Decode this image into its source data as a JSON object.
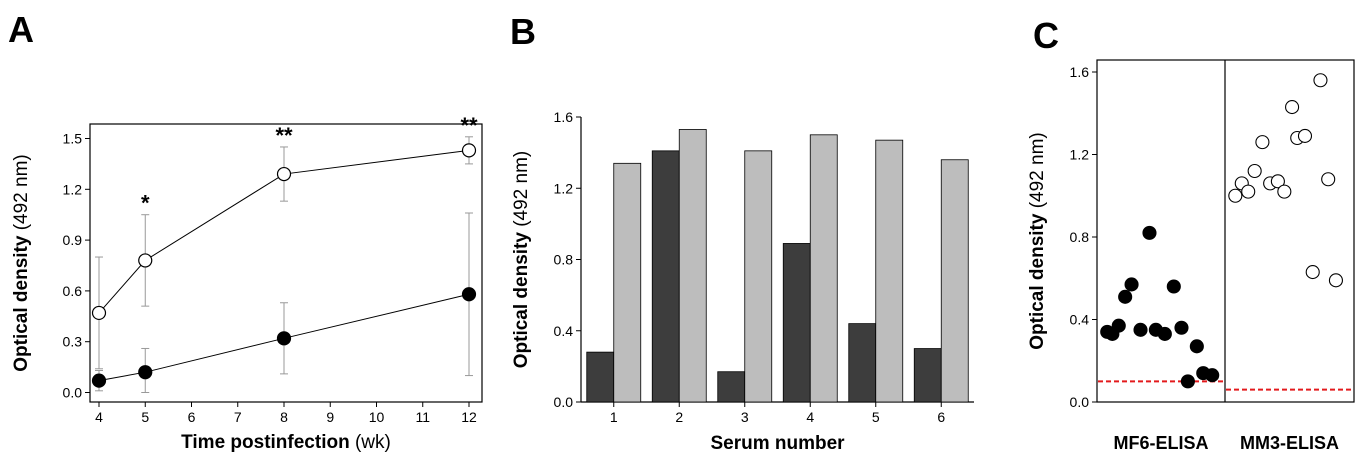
{
  "chart_data": [
    {
      "panel": "A",
      "type": "line",
      "xlabel": "Time postinfection",
      "xlabel_unit": "(wk)",
      "ylabel": "Optical density",
      "ylabel_unit": "(492 nm)",
      "xlim": [
        3.5,
        12.5
      ],
      "ylim": [
        -0.05,
        1.6
      ],
      "xticks": [
        4,
        5,
        6,
        7,
        8,
        9,
        10,
        11,
        12
      ],
      "yticks": [
        0.0,
        0.3,
        0.6,
        0.9,
        1.2,
        1.5
      ],
      "ytick_labels": [
        "0.0",
        "0.3",
        "0.6",
        "0.9",
        "1.2",
        "1.5"
      ],
      "series": [
        {
          "marker": "open-circle",
          "x": [
            4,
            5,
            8,
            12
          ],
          "y": [
            0.47,
            0.78,
            1.29,
            1.43
          ],
          "error": [
            0.33,
            0.27,
            0.16,
            0.08
          ]
        },
        {
          "marker": "filled-circle",
          "x": [
            4,
            5,
            8,
            12
          ],
          "y": [
            0.07,
            0.12,
            0.32,
            0.58
          ],
          "error": [
            0.06,
            0.14,
            0.21,
            0.48
          ]
        }
      ],
      "annotations": [
        {
          "x": 5,
          "y": 1.05,
          "text": "*"
        },
        {
          "x": 8,
          "y": 1.45,
          "text": "**"
        },
        {
          "x": 12,
          "y": 1.51,
          "text": "**"
        }
      ]
    },
    {
      "panel": "B",
      "type": "bar",
      "xlabel": "Serum number",
      "ylabel": "Optical density",
      "ylabel_unit": "(492 nm)",
      "categories": [
        "1",
        "2",
        "3",
        "4",
        "5",
        "6"
      ],
      "ylim": [
        0,
        1.6
      ],
      "yticks": [
        0.0,
        0.4,
        0.8,
        1.2,
        1.6
      ],
      "ytick_labels": [
        "0.0",
        "0.4",
        "0.8",
        "1.2",
        "1.6"
      ],
      "series": [
        {
          "color": "#3d3d3d",
          "values": [
            0.28,
            1.41,
            0.17,
            0.89,
            0.44,
            0.3
          ]
        },
        {
          "color": "#bdbdbd",
          "values": [
            1.34,
            1.53,
            1.41,
            1.5,
            1.47,
            1.36
          ]
        }
      ]
    },
    {
      "panel": "C",
      "type": "scatter",
      "ylabel": "Optical density",
      "ylabel_unit": "(492 nm)",
      "categories": [
        "MF6-ELISA",
        "MM3-ELISA"
      ],
      "ylim": [
        0,
        1.65
      ],
      "yticks": [
        0.0,
        0.4,
        0.8,
        1.2,
        1.6
      ],
      "ytick_labels": [
        "0.0",
        "0.4",
        "0.8",
        "1.2",
        "1.6"
      ],
      "cutoffs": [
        0.1,
        0.06
      ],
      "cutoff_color": "#e31a1c",
      "groups": [
        {
          "marker": "filled-circle",
          "points": [
            [
              0.08,
              0.34
            ],
            [
              0.12,
              0.33
            ],
            [
              0.17,
              0.37
            ],
            [
              0.22,
              0.51
            ],
            [
              0.27,
              0.57
            ],
            [
              0.34,
              0.35
            ],
            [
              0.41,
              0.82
            ],
            [
              0.46,
              0.35
            ],
            [
              0.53,
              0.33
            ],
            [
              0.6,
              0.56
            ],
            [
              0.66,
              0.36
            ],
            [
              0.71,
              0.1
            ],
            [
              0.78,
              0.27
            ],
            [
              0.83,
              0.14
            ],
            [
              0.9,
              0.13
            ]
          ]
        },
        {
          "marker": "open-circle",
          "points": [
            [
              0.08,
              1.0
            ],
            [
              0.13,
              1.06
            ],
            [
              0.18,
              1.02
            ],
            [
              0.23,
              1.12
            ],
            [
              0.29,
              1.26
            ],
            [
              0.35,
              1.06
            ],
            [
              0.41,
              1.07
            ],
            [
              0.46,
              1.02
            ],
            [
              0.52,
              1.43
            ],
            [
              0.56,
              1.28
            ],
            [
              0.62,
              1.29
            ],
            [
              0.68,
              0.63
            ],
            [
              0.74,
              1.56
            ],
            [
              0.8,
              1.08
            ],
            [
              0.86,
              0.59
            ]
          ]
        }
      ]
    }
  ],
  "panel_letters": [
    "A",
    "B",
    "C"
  ]
}
